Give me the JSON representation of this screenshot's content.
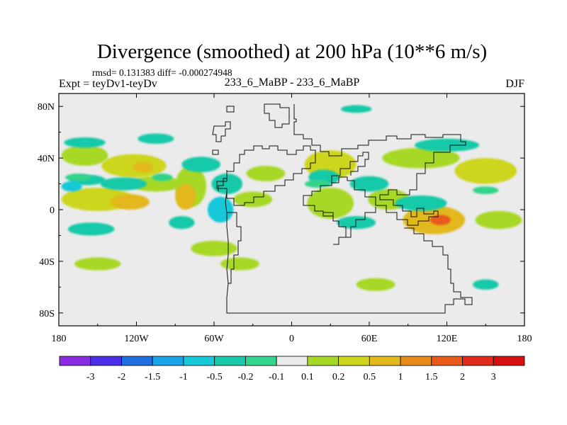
{
  "chart_data": {
    "type": "heatmap",
    "title": "Divergence (smoothed) at 200 hPa (10**6 m/s)",
    "subtitle_stats": "rmsd= 0.131383 diff= -0.000274948",
    "experiment_label": "Expt = teyDv1-teyDv",
    "run_label": "233_6_MaBP - 233_6_MaBP",
    "season": "DJF",
    "x_axis": {
      "range": [
        -180,
        180
      ],
      "ticks": [
        -180,
        -120,
        -60,
        0,
        60,
        120,
        180
      ],
      "tick_labels": [
        "180",
        "120W",
        "60W",
        "0",
        "60E",
        "120E",
        "180"
      ]
    },
    "y_axis": {
      "range": [
        -90,
        90
      ],
      "ticks": [
        80,
        40,
        0,
        -40,
        -80
      ],
      "tick_labels": [
        "80N",
        "40N",
        "0",
        "40S",
        "80S"
      ]
    },
    "colorbar": {
      "levels": [
        "-3",
        "-2",
        "-1.5",
        "-1",
        "-0.5",
        "-0.2",
        "-0.1",
        "0.1",
        "0.2",
        "0.5",
        "1",
        "1.5",
        "2",
        "3"
      ],
      "colors": [
        "#8a2be2",
        "#4b2fe8",
        "#1e6fe0",
        "#1aa3e8",
        "#19c8d8",
        "#17c9a9",
        "#33d48c",
        "#ebebeb",
        "#a8d826",
        "#cdd51c",
        "#e3b81a",
        "#e88a1a",
        "#e85a1a",
        "#e02a1a",
        "#d80f0f"
      ]
    },
    "background_color": "#ebebeb",
    "field_blobs": [
      {
        "lon": -160,
        "lat": 42,
        "rlon": 18,
        "rlat": 8,
        "level": 8
      },
      {
        "lon": -122,
        "lat": 34,
        "rlon": 25,
        "rlat": 9,
        "level": 9
      },
      {
        "lon": -115,
        "lat": 33,
        "rlon": 8,
        "rlat": 4,
        "level": 10
      },
      {
        "lon": -150,
        "lat": 8,
        "rlon": 28,
        "rlat": 9,
        "level": 9
      },
      {
        "lon": -125,
        "lat": 6,
        "rlon": 15,
        "rlat": 6,
        "level": 10
      },
      {
        "lon": -105,
        "lat": 20,
        "rlon": 20,
        "rlat": 6,
        "level": 8
      },
      {
        "lon": -78,
        "lat": 18,
        "rlon": 12,
        "rlat": 16,
        "level": 8
      },
      {
        "lon": -82,
        "lat": 10,
        "rlon": 8,
        "rlat": 10,
        "level": 10
      },
      {
        "lon": -20,
        "lat": 28,
        "rlon": 15,
        "rlat": 6,
        "level": 8
      },
      {
        "lon": 30,
        "lat": 35,
        "rlon": 20,
        "rlat": 11,
        "level": 9
      },
      {
        "lon": 100,
        "lat": 40,
        "rlon": 30,
        "rlat": 8,
        "level": 8
      },
      {
        "lon": 150,
        "lat": 30,
        "rlon": 24,
        "rlat": 10,
        "level": 9
      },
      {
        "lon": 110,
        "lat": -8,
        "rlon": 24,
        "rlat": 11,
        "level": 10
      },
      {
        "lon": 115,
        "lat": -8,
        "rlon": 8,
        "rlat": 4,
        "level": 12
      },
      {
        "lon": 160,
        "lat": -8,
        "rlon": 18,
        "rlat": 7,
        "level": 8
      },
      {
        "lon": 30,
        "lat": 5,
        "rlon": 18,
        "rlat": 12,
        "level": 8
      },
      {
        "lon": 75,
        "lat": 8,
        "rlon": 16,
        "rlat": 8,
        "level": 8
      },
      {
        "lon": -30,
        "lat": 8,
        "rlon": 15,
        "rlat": 6,
        "level": 8
      },
      {
        "lon": -150,
        "lat": -42,
        "rlon": 18,
        "rlat": 5,
        "level": 8
      },
      {
        "lon": -60,
        "lat": -30,
        "rlon": 18,
        "rlat": 6,
        "level": 8
      },
      {
        "lon": -40,
        "lat": -42,
        "rlon": 15,
        "rlat": 5,
        "level": 8
      },
      {
        "lon": 65,
        "lat": -58,
        "rlon": 15,
        "rlat": 5,
        "level": 8
      },
      {
        "lon": -130,
        "lat": 20,
        "rlon": 18,
        "rlat": 5,
        "level": 5
      },
      {
        "lon": -158,
        "lat": 23,
        "rlon": 14,
        "rlat": 4,
        "level": 5
      },
      {
        "lon": -160,
        "lat": 52,
        "rlon": 16,
        "rlat": 4,
        "level": 5
      },
      {
        "lon": -105,
        "lat": 55,
        "rlon": 14,
        "rlat": 4,
        "level": 5
      },
      {
        "lon": -70,
        "lat": 35,
        "rlon": 15,
        "rlat": 6,
        "level": 5
      },
      {
        "lon": -50,
        "lat": 20,
        "rlon": 12,
        "rlat": 8,
        "level": 5
      },
      {
        "lon": -55,
        "lat": 0,
        "rlon": 10,
        "rlat": 10,
        "level": 4
      },
      {
        "lon": -85,
        "lat": -10,
        "rlon": 10,
        "rlat": 5,
        "level": 5
      },
      {
        "lon": -155,
        "lat": -15,
        "rlon": 18,
        "rlat": 5,
        "level": 5
      },
      {
        "lon": 25,
        "lat": 25,
        "rlon": 12,
        "rlat": 6,
        "level": 5
      },
      {
        "lon": 60,
        "lat": 20,
        "rlon": 15,
        "rlat": 6,
        "level": 5
      },
      {
        "lon": 100,
        "lat": 5,
        "rlon": 20,
        "rlat": 6,
        "level": 5
      },
      {
        "lon": 50,
        "lat": -10,
        "rlon": 15,
        "rlat": 5,
        "level": 5
      },
      {
        "lon": 120,
        "lat": 50,
        "rlon": 25,
        "rlat": 5,
        "level": 5
      },
      {
        "lon": 50,
        "lat": 78,
        "rlon": 12,
        "rlat": 3,
        "level": 5
      },
      {
        "lon": -165,
        "lat": 25,
        "rlon": 10,
        "rlat": 3,
        "level": 6
      },
      {
        "lon": -100,
        "lat": 25,
        "rlon": 8,
        "rlat": 3,
        "level": 6
      },
      {
        "lon": 20,
        "lat": 20,
        "rlon": 10,
        "rlat": 3,
        "level": 6
      },
      {
        "lon": 150,
        "lat": 15,
        "rlon": 10,
        "rlat": 3,
        "level": 6
      },
      {
        "lon": 150,
        "lat": -58,
        "rlon": 10,
        "rlat": 4,
        "level": 5
      },
      {
        "lon": -170,
        "lat": 18,
        "rlon": 8,
        "rlat": 4,
        "level": 4
      }
    ],
    "overlay": "coastline outline"
  }
}
